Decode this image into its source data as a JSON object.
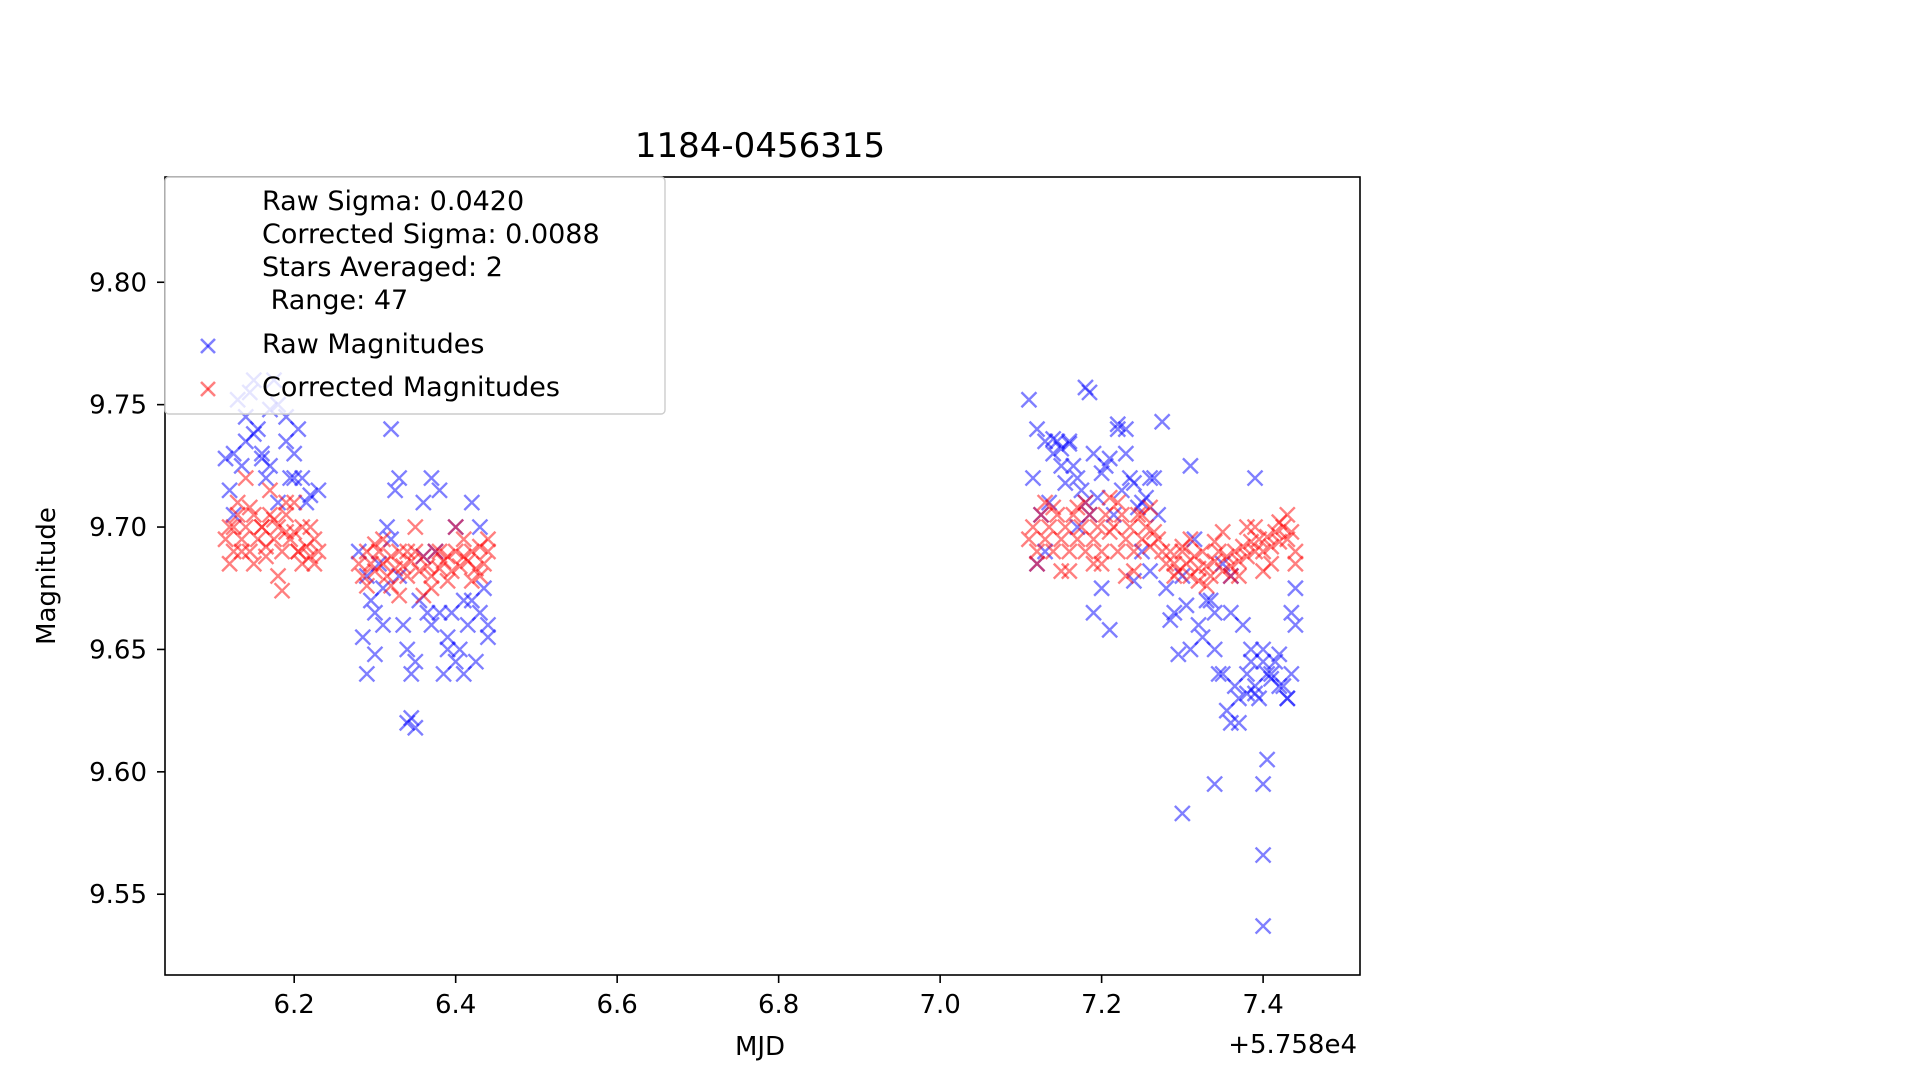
{
  "chart_data": {
    "type": "scatter",
    "title": "1184-0456315",
    "xlabel": "MJD",
    "ylabel": "Magnitude",
    "x_offset_label": "+5.758e4",
    "xlim": [
      6.04,
      7.52
    ],
    "ylim": [
      9.517,
      9.843
    ],
    "x_ticks": [
      6.2,
      6.4,
      6.6,
      6.8,
      7.0,
      7.2,
      7.4
    ],
    "x_tick_labels": [
      "6.2",
      "6.4",
      "6.6",
      "6.8",
      "7.0",
      "7.2",
      "7.4"
    ],
    "y_ticks": [
      9.55,
      9.6,
      9.65,
      9.7,
      9.75,
      9.8
    ],
    "y_tick_labels": [
      "9.55",
      "9.60",
      "9.65",
      "9.70",
      "9.75",
      "9.80"
    ],
    "legend_placement": "upper-left",
    "legend_info": [
      "Raw Sigma: 0.0420",
      "Corrected Sigma: 0.0088",
      "Stars Averaged: 2",
      " Range: 47"
    ],
    "series": [
      {
        "name": "Raw Magnitudes",
        "color": "#0000ff",
        "marker": "x",
        "x": [
          6.115,
          6.12,
          6.13,
          6.14,
          6.15,
          6.16,
          6.17,
          6.18,
          6.19,
          6.2,
          6.21,
          6.22,
          6.23,
          6.125,
          6.145,
          6.165,
          6.175,
          6.195,
          6.205,
          6.215,
          6.14,
          6.16,
          6.18,
          6.2,
          6.15,
          6.17,
          6.19,
          6.125,
          6.135,
          6.155,
          6.28,
          6.29,
          6.3,
          6.31,
          6.32,
          6.33,
          6.34,
          6.35,
          6.36,
          6.37,
          6.38,
          6.39,
          6.4,
          6.41,
          6.42,
          6.43,
          6.44,
          6.285,
          6.295,
          6.305,
          6.315,
          6.325,
          6.335,
          6.345,
          6.355,
          6.365,
          6.375,
          6.385,
          6.395,
          6.405,
          6.415,
          6.425,
          6.435,
          6.34,
          6.345,
          6.35,
          6.31,
          6.32,
          6.33,
          6.37,
          6.41,
          6.42,
          6.43,
          6.3,
          6.36,
          6.38,
          6.44,
          6.4,
          6.39,
          6.29,
          7.11,
          7.12,
          7.13,
          7.14,
          7.15,
          7.16,
          7.17,
          7.18,
          7.19,
          7.2,
          7.21,
          7.22,
          7.23,
          7.24,
          7.25,
          7.26,
          7.27,
          7.115,
          7.125,
          7.135,
          7.145,
          7.155,
          7.165,
          7.175,
          7.185,
          7.195,
          7.205,
          7.215,
          7.225,
          7.235,
          7.245,
          7.255,
          7.265,
          7.14,
          7.15,
          7.16,
          7.18,
          7.185,
          7.22,
          7.23,
          7.12,
          7.13,
          7.17,
          7.19,
          7.2,
          7.21,
          7.24,
          7.25,
          7.26,
          7.275,
          7.28,
          7.29,
          7.3,
          7.31,
          7.32,
          7.33,
          7.34,
          7.35,
          7.36,
          7.37,
          7.38,
          7.39,
          7.4,
          7.41,
          7.42,
          7.43,
          7.44,
          7.285,
          7.295,
          7.305,
          7.315,
          7.325,
          7.335,
          7.345,
          7.355,
          7.365,
          7.375,
          7.385,
          7.395,
          7.405,
          7.415,
          7.425,
          7.435,
          7.34,
          7.35,
          7.36,
          7.39,
          7.4,
          7.41,
          7.42,
          7.43,
          7.37,
          7.38,
          7.3,
          7.34,
          7.4,
          7.4,
          7.405,
          7.4,
          7.31,
          7.44,
          7.435,
          7.36,
          7.39,
          7.385
        ],
        "y": [
          9.728,
          9.715,
          9.752,
          9.735,
          9.738,
          9.728,
          9.748,
          9.71,
          9.735,
          9.73,
          9.72,
          9.713,
          9.715,
          9.73,
          9.755,
          9.72,
          9.76,
          9.72,
          9.74,
          9.71,
          9.745,
          9.73,
          9.75,
          9.72,
          9.76,
          9.725,
          9.745,
          9.705,
          9.725,
          9.74,
          9.69,
          9.68,
          9.665,
          9.66,
          9.74,
          9.72,
          9.65,
          9.645,
          9.71,
          9.72,
          9.665,
          9.655,
          9.645,
          9.67,
          9.71,
          9.665,
          9.655,
          9.655,
          9.67,
          9.685,
          9.7,
          9.715,
          9.66,
          9.64,
          9.67,
          9.665,
          9.69,
          9.64,
          9.665,
          9.65,
          9.66,
          9.645,
          9.675,
          9.62,
          9.622,
          9.618,
          9.675,
          9.695,
          9.68,
          9.66,
          9.64,
          9.67,
          9.7,
          9.648,
          9.688,
          9.715,
          9.66,
          9.7,
          9.65,
          9.64,
          9.752,
          9.74,
          9.735,
          9.73,
          9.725,
          9.735,
          9.72,
          9.71,
          9.73,
          9.722,
          9.728,
          9.74,
          9.73,
          9.718,
          9.71,
          9.72,
          9.705,
          9.72,
          9.705,
          9.71,
          9.735,
          9.718,
          9.725,
          9.715,
          9.705,
          9.712,
          9.725,
          9.705,
          9.715,
          9.72,
          9.708,
          9.712,
          9.72,
          9.736,
          9.732,
          9.734,
          9.757,
          9.755,
          9.742,
          9.74,
          9.685,
          9.69,
          9.7,
          9.665,
          9.675,
          9.658,
          9.678,
          9.69,
          9.682,
          9.743,
          9.675,
          9.665,
          9.68,
          9.725,
          9.66,
          9.67,
          9.65,
          9.64,
          9.62,
          9.63,
          9.64,
          9.635,
          9.65,
          9.64,
          9.635,
          9.63,
          9.675,
          9.662,
          9.648,
          9.668,
          9.695,
          9.655,
          9.67,
          9.64,
          9.625,
          9.635,
          9.66,
          9.645,
          9.63,
          9.64,
          9.645,
          9.635,
          9.64,
          9.665,
          9.685,
          9.665,
          9.632,
          9.645,
          9.638,
          9.648,
          9.63,
          9.62,
          9.632,
          9.583,
          9.595,
          9.595,
          9.566,
          9.605,
          9.537,
          9.65,
          9.66,
          9.665,
          9.68,
          9.72,
          9.65
        ],
        "alpha": 0.5
      },
      {
        "name": "Corrected Magnitudes",
        "color": "#ff0000",
        "marker": "x",
        "x": [
          6.115,
          6.12,
          6.125,
          6.13,
          6.135,
          6.14,
          6.145,
          6.15,
          6.155,
          6.16,
          6.165,
          6.17,
          6.175,
          6.18,
          6.185,
          6.19,
          6.195,
          6.2,
          6.205,
          6.21,
          6.215,
          6.22,
          6.225,
          6.23,
          6.12,
          6.13,
          6.14,
          6.15,
          6.16,
          6.17,
          6.18,
          6.19,
          6.2,
          6.21,
          6.22,
          6.125,
          6.145,
          6.165,
          6.185,
          6.205,
          6.225,
          6.135,
          6.175,
          6.19,
          6.28,
          6.285,
          6.29,
          6.295,
          6.3,
          6.305,
          6.31,
          6.315,
          6.32,
          6.325,
          6.33,
          6.335,
          6.34,
          6.345,
          6.35,
          6.355,
          6.36,
          6.365,
          6.37,
          6.375,
          6.38,
          6.385,
          6.39,
          6.395,
          6.4,
          6.405,
          6.41,
          6.415,
          6.42,
          6.425,
          6.43,
          6.435,
          6.44,
          6.29,
          6.31,
          6.33,
          6.35,
          6.37,
          6.39,
          6.41,
          6.43,
          6.3,
          6.32,
          6.34,
          6.36,
          6.38,
          6.4,
          6.42,
          6.44,
          7.11,
          7.115,
          7.12,
          7.125,
          7.13,
          7.135,
          7.14,
          7.145,
          7.15,
          7.155,
          7.16,
          7.165,
          7.17,
          7.175,
          7.18,
          7.185,
          7.19,
          7.195,
          7.2,
          7.205,
          7.21,
          7.215,
          7.22,
          7.225,
          7.23,
          7.235,
          7.24,
          7.245,
          7.25,
          7.255,
          7.26,
          7.265,
          7.27,
          7.12,
          7.14,
          7.16,
          7.18,
          7.2,
          7.22,
          7.24,
          7.26,
          7.13,
          7.15,
          7.17,
          7.19,
          7.21,
          7.23,
          7.25,
          7.275,
          7.28,
          7.285,
          7.29,
          7.295,
          7.3,
          7.305,
          7.31,
          7.315,
          7.32,
          7.325,
          7.33,
          7.335,
          7.34,
          7.345,
          7.35,
          7.355,
          7.36,
          7.365,
          7.37,
          7.375,
          7.38,
          7.385,
          7.39,
          7.395,
          7.4,
          7.405,
          7.41,
          7.415,
          7.42,
          7.425,
          7.43,
          7.435,
          7.44,
          7.29,
          7.31,
          7.33,
          7.35,
          7.37,
          7.39,
          7.41,
          7.43,
          7.3,
          7.32,
          7.34,
          7.36,
          7.38,
          7.4,
          7.42,
          7.44
        ],
        "y": [
          9.695,
          9.7,
          9.69,
          9.705,
          9.695,
          9.7,
          9.69,
          9.705,
          9.695,
          9.7,
          9.688,
          9.705,
          9.695,
          9.7,
          9.69,
          9.71,
          9.695,
          9.698,
          9.69,
          9.7,
          9.692,
          9.688,
          9.695,
          9.69,
          9.685,
          9.71,
          9.72,
          9.685,
          9.7,
          9.715,
          9.68,
          9.705,
          9.71,
          9.685,
          9.7,
          9.7,
          9.708,
          9.692,
          9.674,
          9.69,
          9.685,
          9.69,
          9.703,
          9.698,
          9.685,
          9.68,
          9.69,
          9.685,
          9.682,
          9.69,
          9.685,
          9.68,
          9.688,
          9.683,
          9.69,
          9.684,
          9.68,
          9.686,
          9.69,
          9.682,
          9.688,
          9.684,
          9.68,
          9.69,
          9.683,
          9.686,
          9.688,
          9.682,
          9.69,
          9.684,
          9.688,
          9.686,
          9.69,
          9.683,
          9.692,
          9.685,
          9.69,
          9.676,
          9.695,
          9.672,
          9.7,
          9.675,
          9.678,
          9.695,
          9.68,
          9.693,
          9.676,
          9.69,
          9.672,
          9.69,
          9.7,
          9.678,
          9.695,
          9.695,
          9.7,
          9.69,
          9.705,
          9.695,
          9.7,
          9.69,
          9.705,
          9.695,
          9.7,
          9.69,
          9.705,
          9.695,
          9.7,
          9.69,
          9.705,
          9.695,
          9.7,
          9.69,
          9.705,
          9.698,
          9.7,
          9.69,
          9.705,
          9.695,
          9.7,
          9.69,
          9.705,
          9.695,
          9.7,
          9.692,
          9.698,
          9.695,
          9.685,
          9.708,
          9.682,
          9.71,
          9.685,
          9.71,
          9.682,
          9.708,
          9.71,
          9.682,
          9.708,
          9.685,
          9.712,
          9.68,
          9.705,
          9.69,
          9.685,
          9.69,
          9.685,
          9.682,
          9.69,
          9.685,
          9.68,
          9.688,
          9.683,
          9.69,
          9.684,
          9.68,
          9.686,
          9.69,
          9.682,
          9.688,
          9.684,
          9.69,
          9.686,
          9.692,
          9.688,
          9.694,
          9.69,
          9.695,
          9.69,
          9.696,
          9.692,
          9.698,
          9.694,
          9.7,
          9.695,
          9.698,
          9.69,
          9.68,
          9.695,
          9.676,
          9.698,
          9.68,
          9.7,
          9.685,
          9.705,
          9.692,
          9.678,
          9.694,
          9.68,
          9.7,
          9.682,
          9.702,
          9.685
        ],
        "alpha": 0.5
      }
    ]
  }
}
